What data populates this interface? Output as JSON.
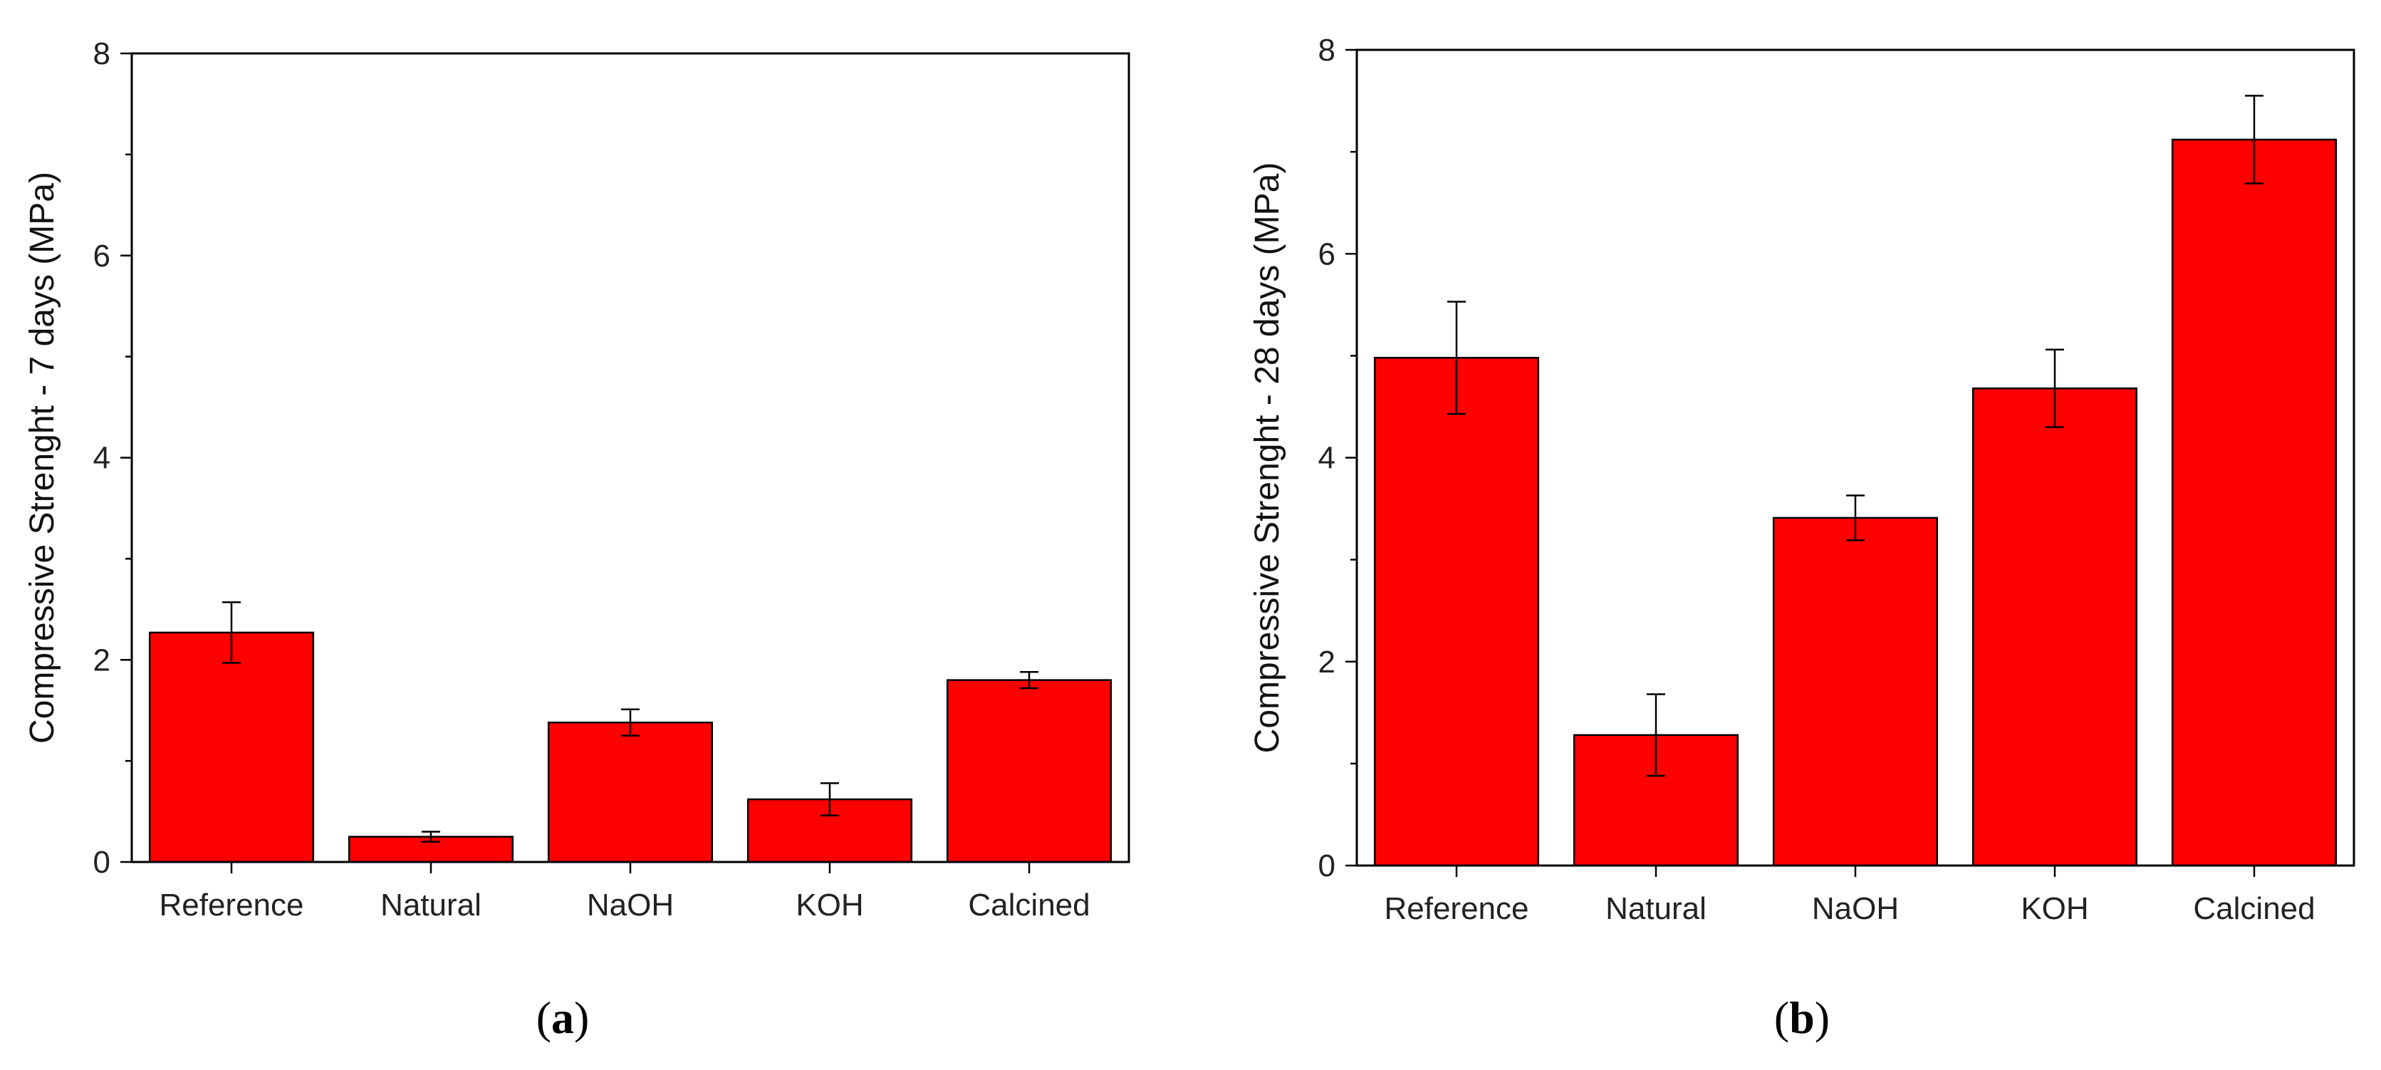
{
  "chart_data": [
    {
      "type": "bar",
      "panel_label": "(a)",
      "panel_letter": "a",
      "categories": [
        "Reference",
        "Natural",
        "NaOH",
        "KOH",
        "Calcined"
      ],
      "values": [
        2.27,
        0.25,
        1.38,
        0.62,
        1.8
      ],
      "errors": [
        0.3,
        0.05,
        0.13,
        0.16,
        0.08
      ],
      "ylabel": "Compressive Strenght - 7 days (MPa)",
      "xlabel": "",
      "ylim": [
        0,
        8
      ],
      "yticks": [
        0,
        2,
        4,
        6,
        8
      ],
      "bar_color": "#ff0000",
      "grid": false
    },
    {
      "type": "bar",
      "panel_label": "(b)",
      "panel_letter": "b",
      "categories": [
        "Reference",
        "Natural",
        "NaOH",
        "KOH",
        "Calcined"
      ],
      "values": [
        4.98,
        1.28,
        3.41,
        4.68,
        7.12
      ],
      "errors": [
        0.55,
        0.4,
        0.22,
        0.38,
        0.43
      ],
      "ylabel": "Compressive Strenght - 28 days (MPa)",
      "xlabel": "",
      "ylim": [
        0,
        8
      ],
      "yticks": [
        0,
        2,
        4,
        6,
        8
      ],
      "bar_color": "#ff0000",
      "grid": false
    }
  ]
}
